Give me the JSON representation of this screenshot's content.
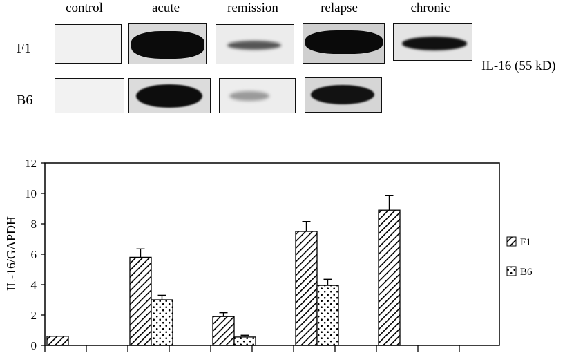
{
  "blot": {
    "lanes": [
      "control",
      "acute",
      "remission",
      "relapse",
      "chronic"
    ],
    "rows": [
      "F1",
      "B6"
    ],
    "protein_label": "IL-16 (55 kD)"
  },
  "chart_data": {
    "type": "bar",
    "ylabel": "IL-16/GAPDH",
    "ylim": [
      0,
      12
    ],
    "yticks": [
      0,
      2,
      4,
      6,
      8,
      10,
      12
    ],
    "groups": [
      "control",
      "acute",
      "remission",
      "relapse",
      "chronic"
    ],
    "series": [
      {
        "name": "F1",
        "pattern": "hatch",
        "values": [
          0.6,
          5.8,
          1.9,
          7.5,
          8.9
        ],
        "errors": [
          null,
          0.55,
          0.25,
          0.65,
          0.95
        ]
      },
      {
        "name": "B6",
        "pattern": "dots",
        "values": [
          null,
          3.0,
          0.55,
          3.95,
          null
        ],
        "errors": [
          null,
          0.3,
          0.12,
          0.4,
          null
        ]
      }
    ],
    "legend": "right"
  }
}
